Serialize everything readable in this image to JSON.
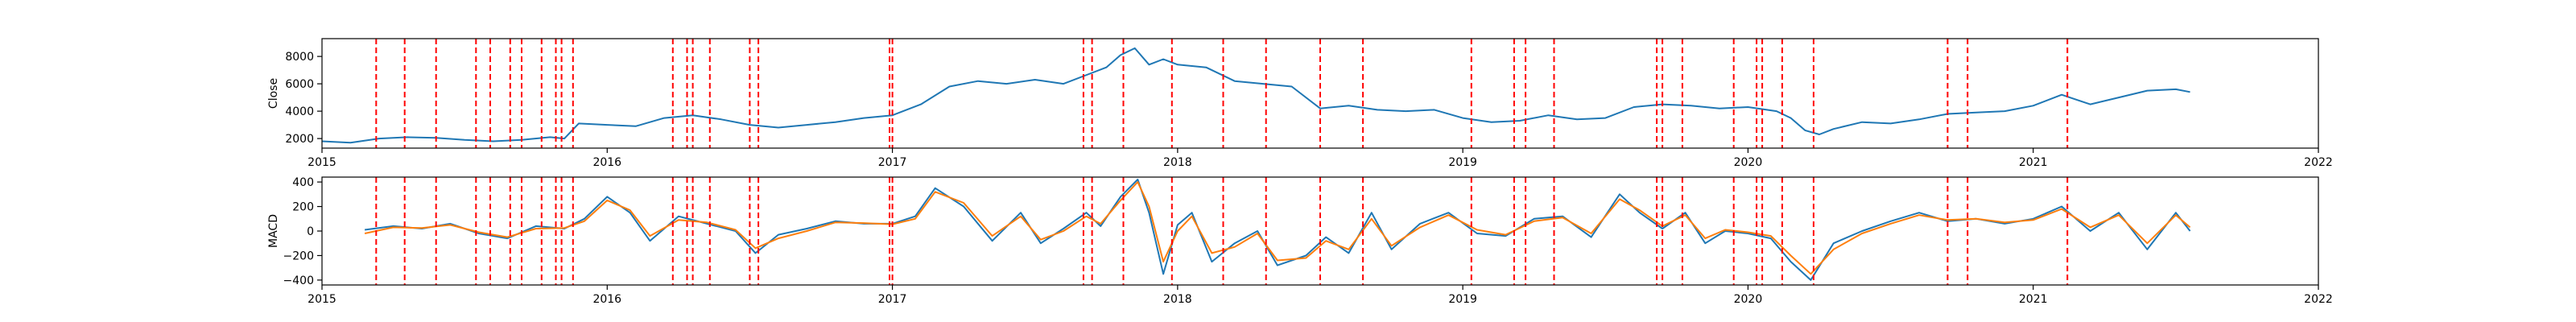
{
  "chart_data": [
    {
      "type": "line",
      "title": "",
      "xlabel": "",
      "ylabel": "Close",
      "xlim": [
        2015,
        2022
      ],
      "ylim": [
        1300,
        9300
      ],
      "xticks": [
        2015,
        2016,
        2017,
        2018,
        2019,
        2020,
        2021,
        2022
      ],
      "xtick_labels": [
        "2015",
        "2016",
        "2017",
        "2018",
        "2019",
        "2020",
        "2021",
        "2022"
      ],
      "yticks": [
        2000,
        4000,
        6000,
        8000
      ],
      "ytick_labels": [
        "2000",
        "4000",
        "6000",
        "8000"
      ],
      "series": [
        {
          "color": "#1f77b4",
          "x": [
            2015.0,
            2015.1,
            2015.2,
            2015.3,
            2015.4,
            2015.5,
            2015.6,
            2015.7,
            2015.8,
            2015.85,
            2015.9,
            2016.0,
            2016.1,
            2016.2,
            2016.3,
            2016.4,
            2016.5,
            2016.6,
            2016.7,
            2016.8,
            2016.9,
            2017.0,
            2017.1,
            2017.2,
            2017.3,
            2017.4,
            2017.5,
            2017.6,
            2017.7,
            2017.75,
            2017.8,
            2017.85,
            2017.9,
            2017.95,
            2018.0,
            2018.1,
            2018.2,
            2018.3,
            2018.4,
            2018.5,
            2018.6,
            2018.7,
            2018.8,
            2018.9,
            2019.0,
            2019.1,
            2019.2,
            2019.3,
            2019.4,
            2019.5,
            2019.6,
            2019.7,
            2019.8,
            2019.9,
            2020.0,
            2020.1,
            2020.15,
            2020.2,
            2020.25,
            2020.3,
            2020.4,
            2020.5,
            2020.6,
            2020.7,
            2020.8,
            2020.9,
            2021.0,
            2021.1,
            2021.2,
            2021.3,
            2021.4,
            2021.5,
            2021.55
          ],
          "values": [
            1800,
            1700,
            2000,
            2100,
            2050,
            1900,
            1800,
            1900,
            2100,
            2000,
            3100,
            3000,
            2900,
            3500,
            3700,
            3400,
            3000,
            2800,
            3000,
            3200,
            3500,
            3700,
            4500,
            5800,
            6200,
            6000,
            6300,
            6000,
            6800,
            7200,
            8100,
            8600,
            7400,
            7800,
            7400,
            7200,
            6200,
            6000,
            5800,
            4200,
            4400,
            4100,
            4000,
            4100,
            3500,
            3200,
            3300,
            3700,
            3400,
            3500,
            4300,
            4500,
            4400,
            4200,
            4300,
            4000,
            3500,
            2600,
            2300,
            2700,
            3200,
            3100,
            3400,
            3800,
            3900,
            4000,
            4400,
            5200,
            4500,
            5000,
            5500,
            5600,
            5400
          ]
        }
      ],
      "event_lines": [
        2015.19,
        2015.29,
        2015.4,
        2015.54,
        2015.59,
        2015.66,
        2015.7,
        2015.77,
        2015.82,
        2015.84,
        2015.88,
        2016.23,
        2016.28,
        2016.3,
        2016.36,
        2016.5,
        2016.53,
        2016.99,
        2017.0,
        2017.67,
        2017.7,
        2017.81,
        2017.98,
        2018.16,
        2018.31,
        2018.5,
        2018.65,
        2019.03,
        2019.18,
        2019.22,
        2019.32,
        2019.68,
        2019.7,
        2019.77,
        2019.95,
        2020.03,
        2020.05,
        2020.12,
        2020.23,
        2020.7,
        2020.77,
        2021.12
      ],
      "event_line_color": "#ff0000",
      "grid": false,
      "legend": "none"
    },
    {
      "type": "line",
      "title": "",
      "xlabel": "",
      "ylabel": "MACD",
      "xlim": [
        2015,
        2022
      ],
      "ylim": [
        -440,
        440
      ],
      "xticks": [
        2015,
        2016,
        2017,
        2018,
        2019,
        2020,
        2021,
        2022
      ],
      "xtick_labels": [
        "2015",
        "2016",
        "2017",
        "2018",
        "2019",
        "2020",
        "2021",
        "2022"
      ],
      "yticks": [
        -400,
        -200,
        0,
        200,
        400
      ],
      "ytick_labels": [
        "−400",
        "−200",
        "0",
        "200",
        "400"
      ],
      "series": [
        {
          "color": "#1f77b4",
          "x": [
            2015.15,
            2015.25,
            2015.35,
            2015.45,
            2015.55,
            2015.65,
            2015.75,
            2015.85,
            2015.92,
            2016.0,
            2016.08,
            2016.15,
            2016.25,
            2016.35,
            2016.45,
            2016.52,
            2016.6,
            2016.7,
            2016.8,
            2016.9,
            2017.0,
            2017.08,
            2017.15,
            2017.25,
            2017.35,
            2017.45,
            2017.52,
            2017.6,
            2017.68,
            2017.73,
            2017.8,
            2017.86,
            2017.9,
            2017.95,
            2018.0,
            2018.05,
            2018.12,
            2018.2,
            2018.28,
            2018.35,
            2018.45,
            2018.52,
            2018.6,
            2018.68,
            2018.75,
            2018.85,
            2018.95,
            2019.05,
            2019.15,
            2019.25,
            2019.35,
            2019.45,
            2019.55,
            2019.62,
            2019.7,
            2019.78,
            2019.85,
            2019.92,
            2020.0,
            2020.08,
            2020.15,
            2020.22,
            2020.3,
            2020.4,
            2020.5,
            2020.6,
            2020.7,
            2020.8,
            2020.9,
            2021.0,
            2021.1,
            2021.2,
            2021.3,
            2021.4,
            2021.5,
            2021.55
          ],
          "values": [
            10,
            40,
            20,
            60,
            -20,
            -60,
            40,
            20,
            100,
            280,
            150,
            -80,
            120,
            60,
            0,
            -180,
            -30,
            20,
            80,
            60,
            60,
            120,
            350,
            200,
            -80,
            150,
            -100,
            20,
            150,
            40,
            280,
            420,
            150,
            -350,
            50,
            150,
            -250,
            -100,
            0,
            -280,
            -200,
            -50,
            -180,
            150,
            -150,
            60,
            150,
            -20,
            -40,
            100,
            120,
            -50,
            300,
            150,
            20,
            150,
            -100,
            0,
            -20,
            -60,
            -250,
            -400,
            -100,
            0,
            80,
            150,
            80,
            100,
            60,
            100,
            200,
            0,
            150,
            -150,
            150,
            0
          ]
        },
        {
          "color": "#ff7f0e",
          "x": [
            2015.15,
            2015.25,
            2015.35,
            2015.45,
            2015.55,
            2015.65,
            2015.75,
            2015.85,
            2015.92,
            2016.0,
            2016.08,
            2016.15,
            2016.25,
            2016.35,
            2016.45,
            2016.52,
            2016.6,
            2016.7,
            2016.8,
            2016.9,
            2017.0,
            2017.08,
            2017.15,
            2017.25,
            2017.35,
            2017.45,
            2017.52,
            2017.6,
            2017.68,
            2017.73,
            2017.8,
            2017.86,
            2017.9,
            2017.95,
            2018.0,
            2018.05,
            2018.12,
            2018.2,
            2018.28,
            2018.35,
            2018.45,
            2018.52,
            2018.6,
            2018.68,
            2018.75,
            2018.85,
            2018.95,
            2019.05,
            2019.15,
            2019.25,
            2019.35,
            2019.45,
            2019.55,
            2019.62,
            2019.7,
            2019.78,
            2019.85,
            2019.92,
            2020.0,
            2020.08,
            2020.15,
            2020.22,
            2020.3,
            2020.4,
            2020.5,
            2020.6,
            2020.7,
            2020.8,
            2020.9,
            2021.0,
            2021.1,
            2021.2,
            2021.3,
            2021.4,
            2021.5,
            2021.55
          ],
          "values": [
            -20,
            30,
            25,
            50,
            -10,
            -50,
            20,
            25,
            80,
            250,
            170,
            -40,
            90,
            70,
            10,
            -140,
            -60,
            0,
            70,
            65,
            55,
            100,
            320,
            230,
            -40,
            120,
            -70,
            0,
            120,
            60,
            250,
            400,
            200,
            -250,
            0,
            120,
            -180,
            -130,
            -20,
            -240,
            -220,
            -80,
            -150,
            100,
            -120,
            30,
            130,
            10,
            -30,
            80,
            110,
            -20,
            260,
            170,
            40,
            130,
            -60,
            10,
            -10,
            -40,
            -200,
            -350,
            -150,
            -20,
            60,
            130,
            90,
            100,
            70,
            90,
            180,
            30,
            130,
            -100,
            130,
            30
          ]
        }
      ],
      "event_lines": [
        2015.19,
        2015.29,
        2015.4,
        2015.54,
        2015.59,
        2015.66,
        2015.7,
        2015.77,
        2015.82,
        2015.84,
        2015.88,
        2016.23,
        2016.28,
        2016.3,
        2016.36,
        2016.5,
        2016.53,
        2016.99,
        2017.0,
        2017.67,
        2017.7,
        2017.81,
        2017.98,
        2018.16,
        2018.31,
        2018.5,
        2018.65,
        2019.03,
        2019.18,
        2019.22,
        2019.32,
        2019.68,
        2019.7,
        2019.77,
        2019.95,
        2020.03,
        2020.05,
        2020.12,
        2020.23,
        2020.7,
        2020.77,
        2021.12
      ],
      "event_line_color": "#ff0000",
      "grid": false,
      "legend": "none"
    }
  ]
}
